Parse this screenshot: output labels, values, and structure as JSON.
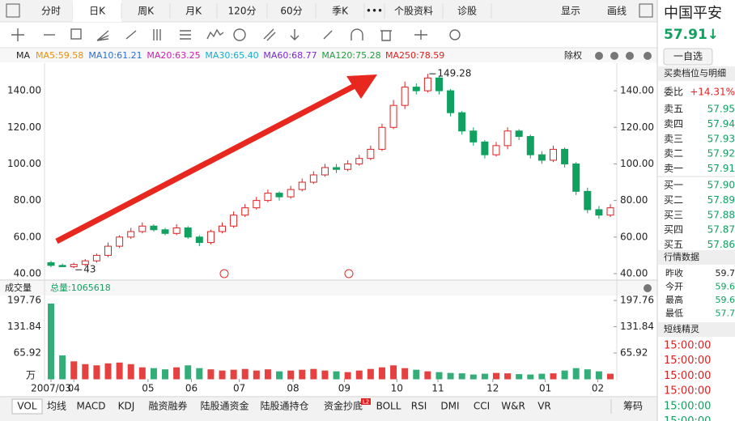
{
  "tabs": {
    "top": [
      "分时",
      "日K",
      "周K",
      "月K",
      "120分",
      "60分",
      "季K",
      "•••",
      "个股资料",
      "诊股"
    ],
    "active": 1,
    "right": [
      "显示",
      "画线"
    ]
  },
  "indicator_bar": {
    "label": "MA",
    "items": [
      {
        "text": "MA5:59.58",
        "color": "#e8900c"
      },
      {
        "text": "MA10:61.21",
        "color": "#2a6fd6"
      },
      {
        "text": "MA20:63.25",
        "color": "#d020b0"
      },
      {
        "text": "MA30:65.40",
        "color": "#10b0d0"
      },
      {
        "text": "MA60:68.77",
        "color": "#7a2ad0"
      },
      {
        "text": "MA120:75.28",
        "color": "#20a040"
      },
      {
        "text": "MA250:78.59",
        "color": "#e02020"
      }
    ],
    "adjust": "除权"
  },
  "chart_data": [
    {
      "type": "candlestick",
      "up_color": "#e02020",
      "down_color": "#10a060",
      "open": [
        46,
        44.5,
        43.8,
        45,
        47,
        50,
        55,
        60,
        63,
        66,
        64,
        62,
        65,
        60,
        57,
        63,
        66,
        72,
        76,
        80,
        84,
        82,
        86,
        90,
        94,
        98,
        97,
        100,
        103,
        108,
        120,
        132,
        142,
        140,
        147,
        140,
        128,
        118,
        112,
        105,
        110,
        118,
        115,
        105,
        102,
        108,
        100,
        85,
        75,
        72
      ],
      "high": [
        47,
        45.5,
        46,
        48,
        51,
        57,
        61,
        65,
        68,
        67,
        65,
        67,
        66,
        61,
        64,
        68,
        74,
        78,
        82,
        86,
        85,
        88,
        92,
        96,
        100,
        100,
        102,
        105,
        110,
        122,
        135,
        145,
        144,
        149.28,
        148,
        141,
        129,
        120,
        113,
        112,
        120,
        119,
        116,
        107,
        110,
        109,
        101,
        87,
        77,
        78
      ],
      "low": [
        43.53,
        43.6,
        43,
        44,
        46,
        49,
        54,
        59,
        62,
        63,
        61,
        61,
        59,
        55,
        56,
        62,
        65,
        71,
        75,
        79,
        80,
        81,
        85,
        89,
        93,
        95,
        96,
        99,
        102,
        107,
        119,
        130,
        138,
        139,
        138,
        126,
        116,
        110,
        103,
        104,
        108,
        113,
        103,
        100,
        101,
        98,
        83,
        73,
        70,
        71
      ],
      "close": [
        44.5,
        43.8,
        45,
        47,
        50,
        55,
        60,
        63,
        66,
        64,
        62,
        65,
        60,
        57,
        63,
        66,
        72,
        76,
        80,
        84,
        82,
        86,
        90,
        94,
        98,
        97,
        100,
        103,
        108,
        120,
        132,
        142,
        140,
        147,
        140,
        128,
        118,
        112,
        105,
        110,
        118,
        115,
        105,
        102,
        108,
        100,
        85,
        75,
        72,
        76
      ],
      "ylim": [
        38,
        152
      ],
      "yticks": [
        {
          "value": 40,
          "label": "40.00"
        },
        {
          "value": 60,
          "label": "60.00"
        },
        {
          "value": 80,
          "label": "80.00"
        },
        {
          "value": 100,
          "label": "100.00"
        },
        {
          "value": 120,
          "label": "120.00"
        },
        {
          "value": 140,
          "label": "140.00"
        }
      ],
      "xticks": [
        {
          "value": 0,
          "label": "2007/03"
        },
        {
          "value": 2,
          "label": "04"
        },
        {
          "value": 8.5,
          "label": "05"
        },
        {
          "value": 12.3,
          "label": "06"
        },
        {
          "value": 16.5,
          "label": "07"
        },
        {
          "value": 21.2,
          "label": "08"
        },
        {
          "value": 25.7,
          "label": "09"
        },
        {
          "value": 30.3,
          "label": "10"
        },
        {
          "value": 33.9,
          "label": "11"
        },
        {
          "value": 38.7,
          "label": "12"
        },
        {
          "value": 43.3,
          "label": "01"
        },
        {
          "value": 47.9,
          "label": "02"
        }
      ],
      "grid": false
    },
    {
      "type": "bar",
      "title": "成交量",
      "subtitle": "总量:1065618",
      "unit": "万",
      "values": [
        190,
        60,
        45,
        38,
        35,
        40,
        42,
        38,
        30,
        28,
        25,
        30,
        35,
        28,
        25,
        22,
        24,
        26,
        22,
        25,
        20,
        22,
        24,
        26,
        22,
        20,
        18,
        22,
        26,
        30,
        35,
        28,
        24,
        20,
        18,
        16,
        15,
        12,
        14,
        16,
        15,
        13,
        12,
        14,
        15,
        22,
        28,
        25,
        20,
        14
      ],
      "ylim": [
        0,
        200
      ],
      "yticks": [
        65.92,
        131.84,
        197.76
      ],
      "grid": false
    }
  ],
  "bottom_tabs": {
    "items": [
      "VOL",
      "均线",
      "MACD",
      "KDJ",
      "融资融券",
      "陆股通资金",
      "陆股通持仓",
      "资金抄底",
      "BOLL",
      "RSI",
      "DMI",
      "CCI",
      "W&R",
      "VR"
    ],
    "active": 0,
    "badge": {
      "index": 7,
      "text": "L2"
    },
    "right": "筹码"
  },
  "quote": {
    "name": "中国平安",
    "price": "57.91↓",
    "watch": "一自选",
    "book_title": "买卖档位与明细",
    "ratio_label": "委比",
    "ratio": "+14.31%",
    "book": [
      [
        "卖五",
        "57.95"
      ],
      [
        "卖四",
        "57.94"
      ],
      [
        "卖三",
        "57.93"
      ],
      [
        "卖二",
        "57.92"
      ],
      [
        "卖一",
        "57.91"
      ],
      [
        "买一",
        "57.90"
      ],
      [
        "买二",
        "57.89"
      ],
      [
        "买三",
        "57.88"
      ],
      [
        "买四",
        "57.87"
      ],
      [
        "买五",
        "57.86"
      ]
    ],
    "stats_title": "行情数据",
    "stats": [
      [
        "昨收",
        "59.7",
        "#222"
      ],
      [
        "今开",
        "59.6",
        "#10a060"
      ],
      [
        "最高",
        "59.6",
        "#10a060"
      ],
      [
        "最低",
        "57.7",
        "#10a060"
      ]
    ],
    "spirit_title": "短线精灵",
    "times": [
      [
        "15:00:00",
        "#e02020"
      ],
      [
        "15:00:00",
        "#e02020"
      ],
      [
        "15:00:00",
        "#e02020"
      ],
      [
        "15:00:00",
        "#e02020"
      ],
      [
        "15:00:00",
        "#10a060"
      ],
      [
        "15:00:00",
        "#10a060"
      ]
    ]
  }
}
